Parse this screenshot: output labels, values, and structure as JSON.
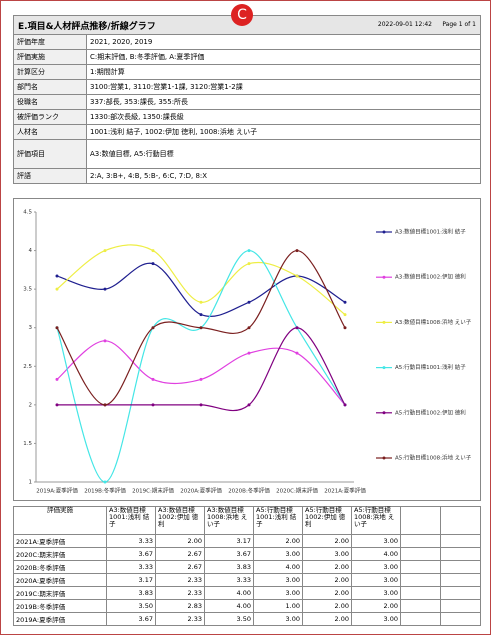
{
  "header": {
    "title": "E.項目&人材評点推移/折線グラフ",
    "badge": "C",
    "date": "2022-09-01 12:42",
    "page": "Page 1 of 1"
  },
  "info": {
    "rows": [
      [
        "評価年度",
        "2021, 2020, 2019"
      ],
      [
        "評価実施",
        "C:期末評価, B:冬季評価, A:夏季評価"
      ],
      [
        "計算区分",
        "1:期間計算"
      ],
      [
        "部門名",
        "3100:営業1, 3110:営業1-1課, 3120:営業1-2課"
      ],
      [
        "役職名",
        "337:部長, 353:課長, 355:所長"
      ],
      [
        "被評価ランク",
        "1330:部次長級, 1350:課長級"
      ],
      [
        "人材名",
        "1001:浅利 結子, 1002:伊加 徳利, 1008:浜地 えい子"
      ],
      [
        "評価項目",
        "A3:数値目標, A5:行動目標"
      ],
      [
        "評語",
        "2:A, 3:B+, 4:B, 5:B-, 6:C, 7:D, 8:X"
      ]
    ]
  },
  "chart_data": {
    "type": "line",
    "categories": [
      "2019A:夏季評価",
      "2019B:冬季評価",
      "2019C:期末評価",
      "2020A:夏季評価",
      "2020B:冬季評価",
      "2020C:期末評価",
      "2021A:夏季評価"
    ],
    "ylim": [
      1,
      4.5
    ],
    "yticks": [
      1,
      1.5,
      2,
      2.5,
      3,
      3.5,
      4,
      4.5
    ],
    "smooth": true,
    "series": [
      {
        "name": "A3:数値目標1001:浅利 結子",
        "color": "#1f1f8f",
        "values": [
          3.67,
          3.5,
          3.83,
          3.17,
          3.33,
          3.67,
          3.33
        ]
      },
      {
        "name": "A3:数値目標1002:伊加 徳利",
        "color": "#e040e0",
        "values": [
          2.33,
          2.83,
          2.33,
          2.33,
          2.67,
          2.67,
          2.0
        ]
      },
      {
        "name": "A3:数値目標1008:浜地 えい子",
        "color": "#eeee44",
        "values": [
          3.5,
          4.0,
          4.0,
          3.33,
          3.83,
          3.67,
          3.17
        ]
      },
      {
        "name": "A5:行動目標1001:浅利 結子",
        "color": "#44e6e6",
        "values": [
          3.0,
          1.0,
          3.0,
          3.0,
          4.0,
          3.0,
          2.0
        ]
      },
      {
        "name": "A5:行動目標1002:伊加 徳利",
        "color": "#800080",
        "values": [
          2.0,
          2.0,
          2.0,
          2.0,
          2.0,
          3.0,
          2.0
        ]
      },
      {
        "name": "A5:行動目標1008:浜地 えい子",
        "color": "#7a1f1f",
        "values": [
          3.0,
          2.0,
          3.0,
          3.0,
          3.0,
          4.0,
          3.0
        ]
      }
    ]
  },
  "table": {
    "columns": [
      "評価実施",
      "A3:数値目標 1001:浅利 結子",
      "A3:数値目標 1002:伊加 徳利",
      "A3:数値目標 1008:浜地 えい子",
      "A5:行動目標 1001:浅利 結子",
      "A5:行動目標 1002:伊加 徳利",
      "A5:行動目標 1008:浜地 えい子"
    ],
    "rows": [
      [
        "2021A:夏季評価",
        "3.33",
        "2.00",
        "3.17",
        "2.00",
        "2.00",
        "3.00"
      ],
      [
        "2020C:期末評価",
        "3.67",
        "2.67",
        "3.67",
        "3.00",
        "3.00",
        "4.00"
      ],
      [
        "2020B:冬季評価",
        "3.33",
        "2.67",
        "3.83",
        "4.00",
        "2.00",
        "3.00"
      ],
      [
        "2020A:夏季評価",
        "3.17",
        "2.33",
        "3.33",
        "3.00",
        "2.00",
        "3.00"
      ],
      [
        "2019C:期末評価",
        "3.83",
        "2.33",
        "4.00",
        "3.00",
        "2.00",
        "3.00"
      ],
      [
        "2019B:冬季評価",
        "3.50",
        "2.83",
        "4.00",
        "1.00",
        "2.00",
        "2.00"
      ],
      [
        "2019A:夏季評価",
        "3.67",
        "2.33",
        "3.50",
        "3.00",
        "2.00",
        "3.00"
      ]
    ]
  }
}
